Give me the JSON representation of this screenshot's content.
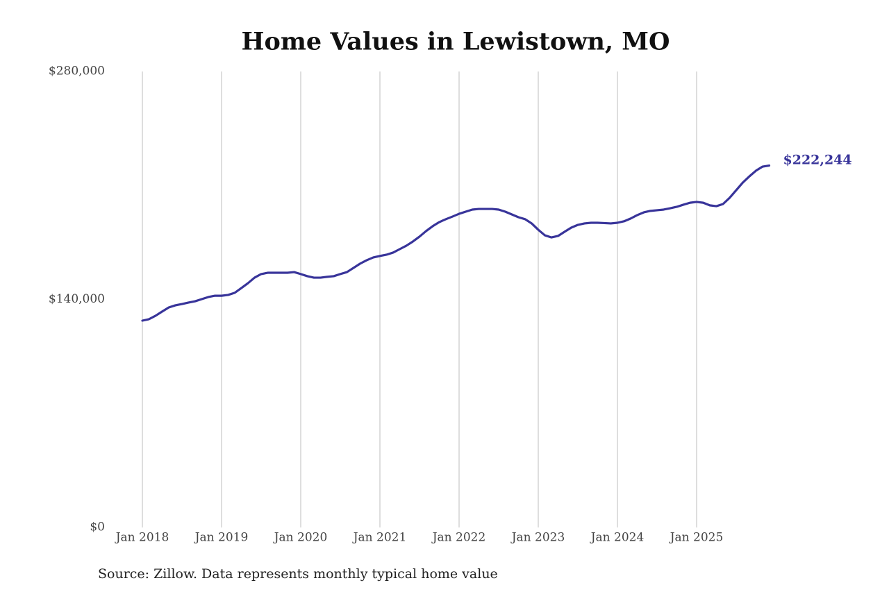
{
  "chart_data": {
    "type": "line",
    "title": "Home Values in Lewistown, MO",
    "source": "Source: Zillow. Data represents monthly typical home value",
    "color": "#38349a",
    "x": [
      "2018-01",
      "2018-02",
      "2018-03",
      "2018-04",
      "2018-05",
      "2018-06",
      "2018-07",
      "2018-08",
      "2018-09",
      "2018-10",
      "2018-11",
      "2018-12",
      "2019-01",
      "2019-02",
      "2019-03",
      "2019-04",
      "2019-05",
      "2019-06",
      "2019-07",
      "2019-08",
      "2019-09",
      "2019-10",
      "2019-11",
      "2019-12",
      "2020-01",
      "2020-02",
      "2020-03",
      "2020-04",
      "2020-05",
      "2020-06",
      "2020-07",
      "2020-08",
      "2020-09",
      "2020-10",
      "2020-11",
      "2020-12",
      "2021-01",
      "2021-02",
      "2021-03",
      "2021-04",
      "2021-05",
      "2021-06",
      "2021-07",
      "2021-08",
      "2021-09",
      "2021-10",
      "2021-11",
      "2021-12",
      "2022-01",
      "2022-02",
      "2022-03",
      "2022-04",
      "2022-05",
      "2022-06",
      "2022-07",
      "2022-08",
      "2022-09",
      "2022-10",
      "2022-11",
      "2022-12",
      "2023-01",
      "2023-02",
      "2023-03",
      "2023-04",
      "2023-05",
      "2023-06",
      "2023-07",
      "2023-08",
      "2023-09",
      "2023-10",
      "2023-11",
      "2023-12",
      "2024-01",
      "2024-02",
      "2024-03",
      "2024-04",
      "2024-05",
      "2024-06",
      "2024-07",
      "2024-08",
      "2024-09",
      "2024-10",
      "2024-11",
      "2024-12",
      "2025-01",
      "2025-02",
      "2025-03",
      "2025-04",
      "2025-05",
      "2025-06",
      "2025-07",
      "2025-08",
      "2025-09",
      "2025-10",
      "2025-11",
      "2025-12"
    ],
    "values": [
      127000,
      127900,
      130000,
      132600,
      135100,
      136400,
      137200,
      138100,
      138900,
      140200,
      141500,
      142300,
      142300,
      142800,
      144100,
      147000,
      150000,
      153400,
      155600,
      156400,
      156400,
      156400,
      156400,
      156800,
      155600,
      154300,
      153400,
      153400,
      153900,
      154300,
      155600,
      156800,
      159400,
      162000,
      164100,
      165800,
      166700,
      167500,
      168800,
      170900,
      173000,
      175600,
      178600,
      182000,
      185000,
      187500,
      189300,
      190900,
      192600,
      193900,
      195200,
      195600,
      195600,
      195600,
      195200,
      193900,
      192200,
      190500,
      189300,
      186700,
      182800,
      179400,
      178100,
      179000,
      181600,
      184100,
      185800,
      186700,
      187100,
      187100,
      186900,
      186700,
      187100,
      188000,
      189700,
      191800,
      193500,
      194400,
      194800,
      195200,
      196000,
      196900,
      198200,
      199400,
      199900,
      199400,
      197800,
      197300,
      198600,
      202400,
      207100,
      211800,
      215600,
      219100,
      221600,
      222244
    ],
    "value_labels": [
      null,
      null,
      null,
      null,
      null,
      null,
      null,
      null,
      null,
      null,
      null,
      null,
      null,
      null,
      null,
      null,
      null,
      null,
      null,
      null,
      null,
      null,
      null,
      null,
      null,
      null,
      null,
      null,
      null,
      null,
      null,
      null,
      null,
      null,
      null,
      null,
      null,
      null,
      null,
      null,
      null,
      null,
      null,
      null,
      null,
      null,
      null,
      null,
      null,
      null,
      null,
      null,
      null,
      null,
      null,
      null,
      null,
      null,
      null,
      null,
      null,
      null,
      null,
      null,
      null,
      null,
      null,
      null,
      null,
      null,
      null,
      null,
      null,
      null,
      null,
      null,
      null,
      null,
      null,
      null,
      null,
      null,
      null,
      null,
      null,
      null,
      null,
      null,
      null,
      null,
      null,
      null,
      null,
      null,
      null,
      "$222,244"
    ],
    "xlim": [
      "2018-01",
      "2025-12"
    ],
    "xticks": [
      {
        "value": "2018-01",
        "label": "Jan 2018"
      },
      {
        "value": "2019-01",
        "label": "Jan 2019"
      },
      {
        "value": "2020-01",
        "label": "Jan 2020"
      },
      {
        "value": "2021-01",
        "label": "Jan 2021"
      },
      {
        "value": "2022-01",
        "label": "Jan 2022"
      },
      {
        "value": "2023-01",
        "label": "Jan 2023"
      },
      {
        "value": "2024-01",
        "label": "Jan 2024"
      },
      {
        "value": "2025-01",
        "label": "Jan 2025"
      }
    ],
    "ylim": [
      0,
      280000
    ],
    "yticks": [
      {
        "value": 0,
        "label": "$0"
      },
      {
        "value": 140000,
        "label": "$140,000"
      },
      {
        "value": 280000,
        "label": "$280,000"
      }
    ],
    "grid": true
  }
}
